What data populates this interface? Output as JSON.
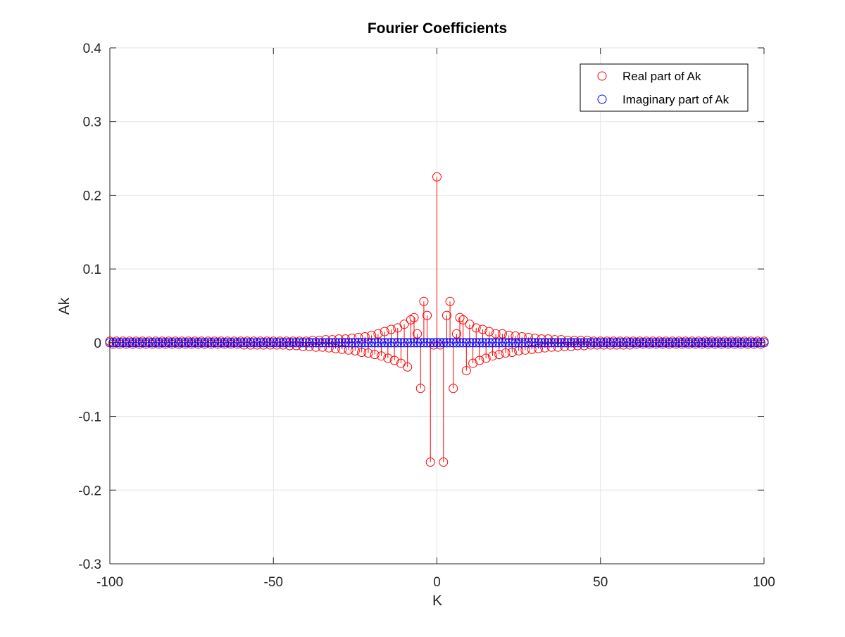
{
  "chart_data": {
    "type": "stem",
    "title": "Fourier Coefficients",
    "xlabel": "K",
    "ylabel": "Ak",
    "xlim": [
      -100,
      100
    ],
    "ylim": [
      -0.3,
      0.4
    ],
    "xticks": [
      -100,
      -50,
      0,
      50,
      100
    ],
    "yticks": [
      -0.3,
      -0.2,
      -0.1,
      0,
      0.1,
      0.2,
      0.3,
      0.4
    ],
    "xtick_labels": [
      "-100",
      "-50",
      "0",
      "50",
      "100"
    ],
    "ytick_labels": [
      "-0.3",
      "-0.2",
      "-0.1",
      "0",
      "0.1",
      "0.2",
      "0.3",
      "0.4"
    ],
    "grid": true,
    "legend_position": "top-right",
    "k_range": [
      -100,
      100
    ],
    "series": [
      {
        "name": "Real part of Ak",
        "color": "#ff0000",
        "marker": "circle",
        "values_by_k": {
          "-100": 0.002,
          "-98": 0.002,
          "-96": 0.002,
          "-94": 0.002,
          "-92": 0.002,
          "-90": 0.002,
          "-88": 0.002,
          "-86": 0.002,
          "-84": 0.002,
          "-82": 0.002,
          "-80": 0.002,
          "-78": 0.002,
          "-76": 0.002,
          "-74": 0.002,
          "-72": 0.002,
          "-70": 0.002,
          "-68": 0.002,
          "-66": 0.002,
          "-64": 0.002,
          "-62": 0.002,
          "-60": 0.002,
          "-58": 0.002,
          "-56": 0.002,
          "-54": 0.002,
          "-52": 0.002,
          "-50": 0.002,
          "-48": 0.002,
          "-46": 0.002,
          "-44": 0.002,
          "-42": 0.002,
          "-40": 0.002,
          "-38": 0.003,
          "-36": 0.003,
          "-34": 0.004,
          "-32": 0.004,
          "-30": 0.005,
          "-28": 0.005,
          "-26": 0.006,
          "-24": 0.007,
          "-22": 0.008,
          "-20": 0.01,
          "-18": 0.012,
          "-16": 0.015,
          "-14": 0.018,
          "-12": 0.02,
          "-10": 0.025,
          "-8": 0.031,
          "-7": 0.034,
          "-6": 0.012,
          "-4": 0.056,
          "-3": 0.037,
          "-1": -0.003,
          "0": 0.225,
          "1": -0.003,
          "3": 0.037,
          "4": 0.056,
          "6": 0.012,
          "7": 0.034,
          "8": 0.031,
          "10": 0.025,
          "12": 0.02,
          "14": 0.018,
          "16": 0.015,
          "18": 0.012,
          "20": 0.012,
          "22": 0.01,
          "24": 0.009,
          "26": 0.008,
          "28": 0.007,
          "30": 0.006,
          "32": 0.005,
          "34": 0.005,
          "36": 0.004,
          "38": 0.004,
          "40": 0.003,
          "42": 0.003,
          "44": 0.003,
          "46": 0.003,
          "48": 0.002,
          "50": 0.002,
          "52": 0.002,
          "54": 0.002,
          "56": 0.002,
          "58": 0.002,
          "60": 0.002,
          "62": 0.002,
          "64": 0.002,
          "66": 0.002,
          "68": 0.002,
          "70": 0.002,
          "72": 0.002,
          "74": 0.002,
          "76": 0.002,
          "78": 0.002,
          "80": 0.002,
          "82": 0.002,
          "84": 0.002,
          "86": 0.002,
          "88": 0.002,
          "90": 0.002,
          "92": 0.002,
          "94": 0.002,
          "96": 0.002,
          "98": 0.002,
          "100": 0.002,
          "-99": -0.002,
          "-97": -0.002,
          "-95": -0.002,
          "-93": -0.002,
          "-91": -0.002,
          "-89": -0.002,
          "-87": -0.002,
          "-85": -0.002,
          "-83": -0.002,
          "-81": -0.002,
          "-79": -0.002,
          "-77": -0.002,
          "-75": -0.002,
          "-73": -0.002,
          "-71": -0.002,
          "-69": -0.002,
          "-67": -0.002,
          "-65": -0.002,
          "-63": -0.002,
          "-61": -0.002,
          "-59": -0.003,
          "-57": -0.003,
          "-55": -0.003,
          "-53": -0.003,
          "-51": -0.003,
          "-49": -0.003,
          "-47": -0.003,
          "-45": -0.004,
          "-43": -0.004,
          "-41": -0.005,
          "-39": -0.005,
          "-37": -0.006,
          "-35": -0.006,
          "-33": -0.007,
          "-31": -0.008,
          "-29": -0.009,
          "-27": -0.01,
          "-25": -0.011,
          "-23": -0.013,
          "-21": -0.014,
          "-19": -0.016,
          "-17": -0.018,
          "-15": -0.021,
          "-13": -0.024,
          "-11": -0.028,
          "-9": -0.033,
          "-5": -0.062,
          "-2": -0.162,
          "2": -0.162,
          "5": -0.062,
          "9": -0.038,
          "11": -0.028,
          "13": -0.024,
          "15": -0.021,
          "17": -0.018,
          "19": -0.016,
          "21": -0.014,
          "23": -0.013,
          "25": -0.011,
          "27": -0.01,
          "29": -0.009,
          "31": -0.008,
          "33": -0.007,
          "35": -0.006,
          "37": -0.006,
          "39": -0.005,
          "41": -0.005,
          "43": -0.004,
          "45": -0.004,
          "47": -0.003,
          "49": -0.003,
          "51": -0.003,
          "53": -0.003,
          "55": -0.003,
          "57": -0.003,
          "59": -0.003,
          "61": -0.002,
          "63": -0.002,
          "65": -0.002,
          "67": -0.002,
          "69": -0.002,
          "71": -0.002,
          "73": -0.002,
          "75": -0.002,
          "77": -0.002,
          "79": -0.002,
          "81": -0.002,
          "83": -0.002,
          "85": -0.002,
          "87": -0.002,
          "89": -0.002,
          "91": -0.002,
          "93": -0.002,
          "95": -0.002,
          "97": -0.002,
          "99": -0.002
        }
      },
      {
        "name": "Imaginary part of Ak",
        "color": "#0000ff",
        "marker": "circle",
        "constant_value": 0
      }
    ]
  }
}
